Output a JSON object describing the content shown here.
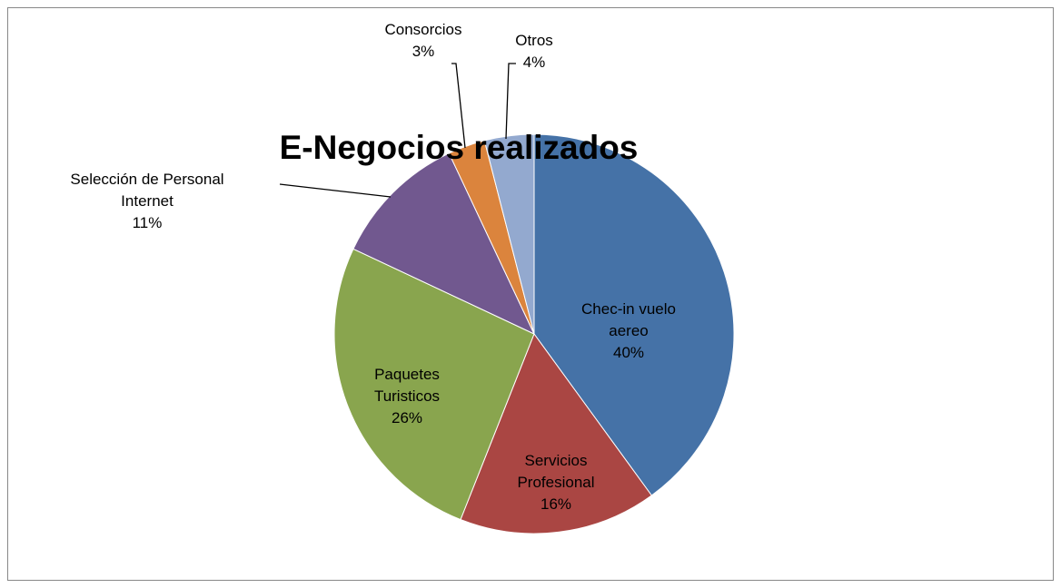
{
  "chart_data": {
    "type": "pie",
    "title": "E-Negocios realizados",
    "categories": [
      "Chec-in vuelo aereo",
      "Servicios Profesional",
      "Paquetes Turisticos",
      "Selección de Personal Internet",
      "Consorcios",
      "Otros"
    ],
    "values": [
      40,
      16,
      26,
      11,
      3,
      4
    ],
    "value_labels": [
      "40%",
      "16%",
      "26%",
      "11%",
      "3%",
      "4%"
    ],
    "colors": [
      "#4572a7",
      "#aa4643",
      "#89a54e",
      "#71588f",
      "#db843d",
      "#93a9cf"
    ]
  }
}
